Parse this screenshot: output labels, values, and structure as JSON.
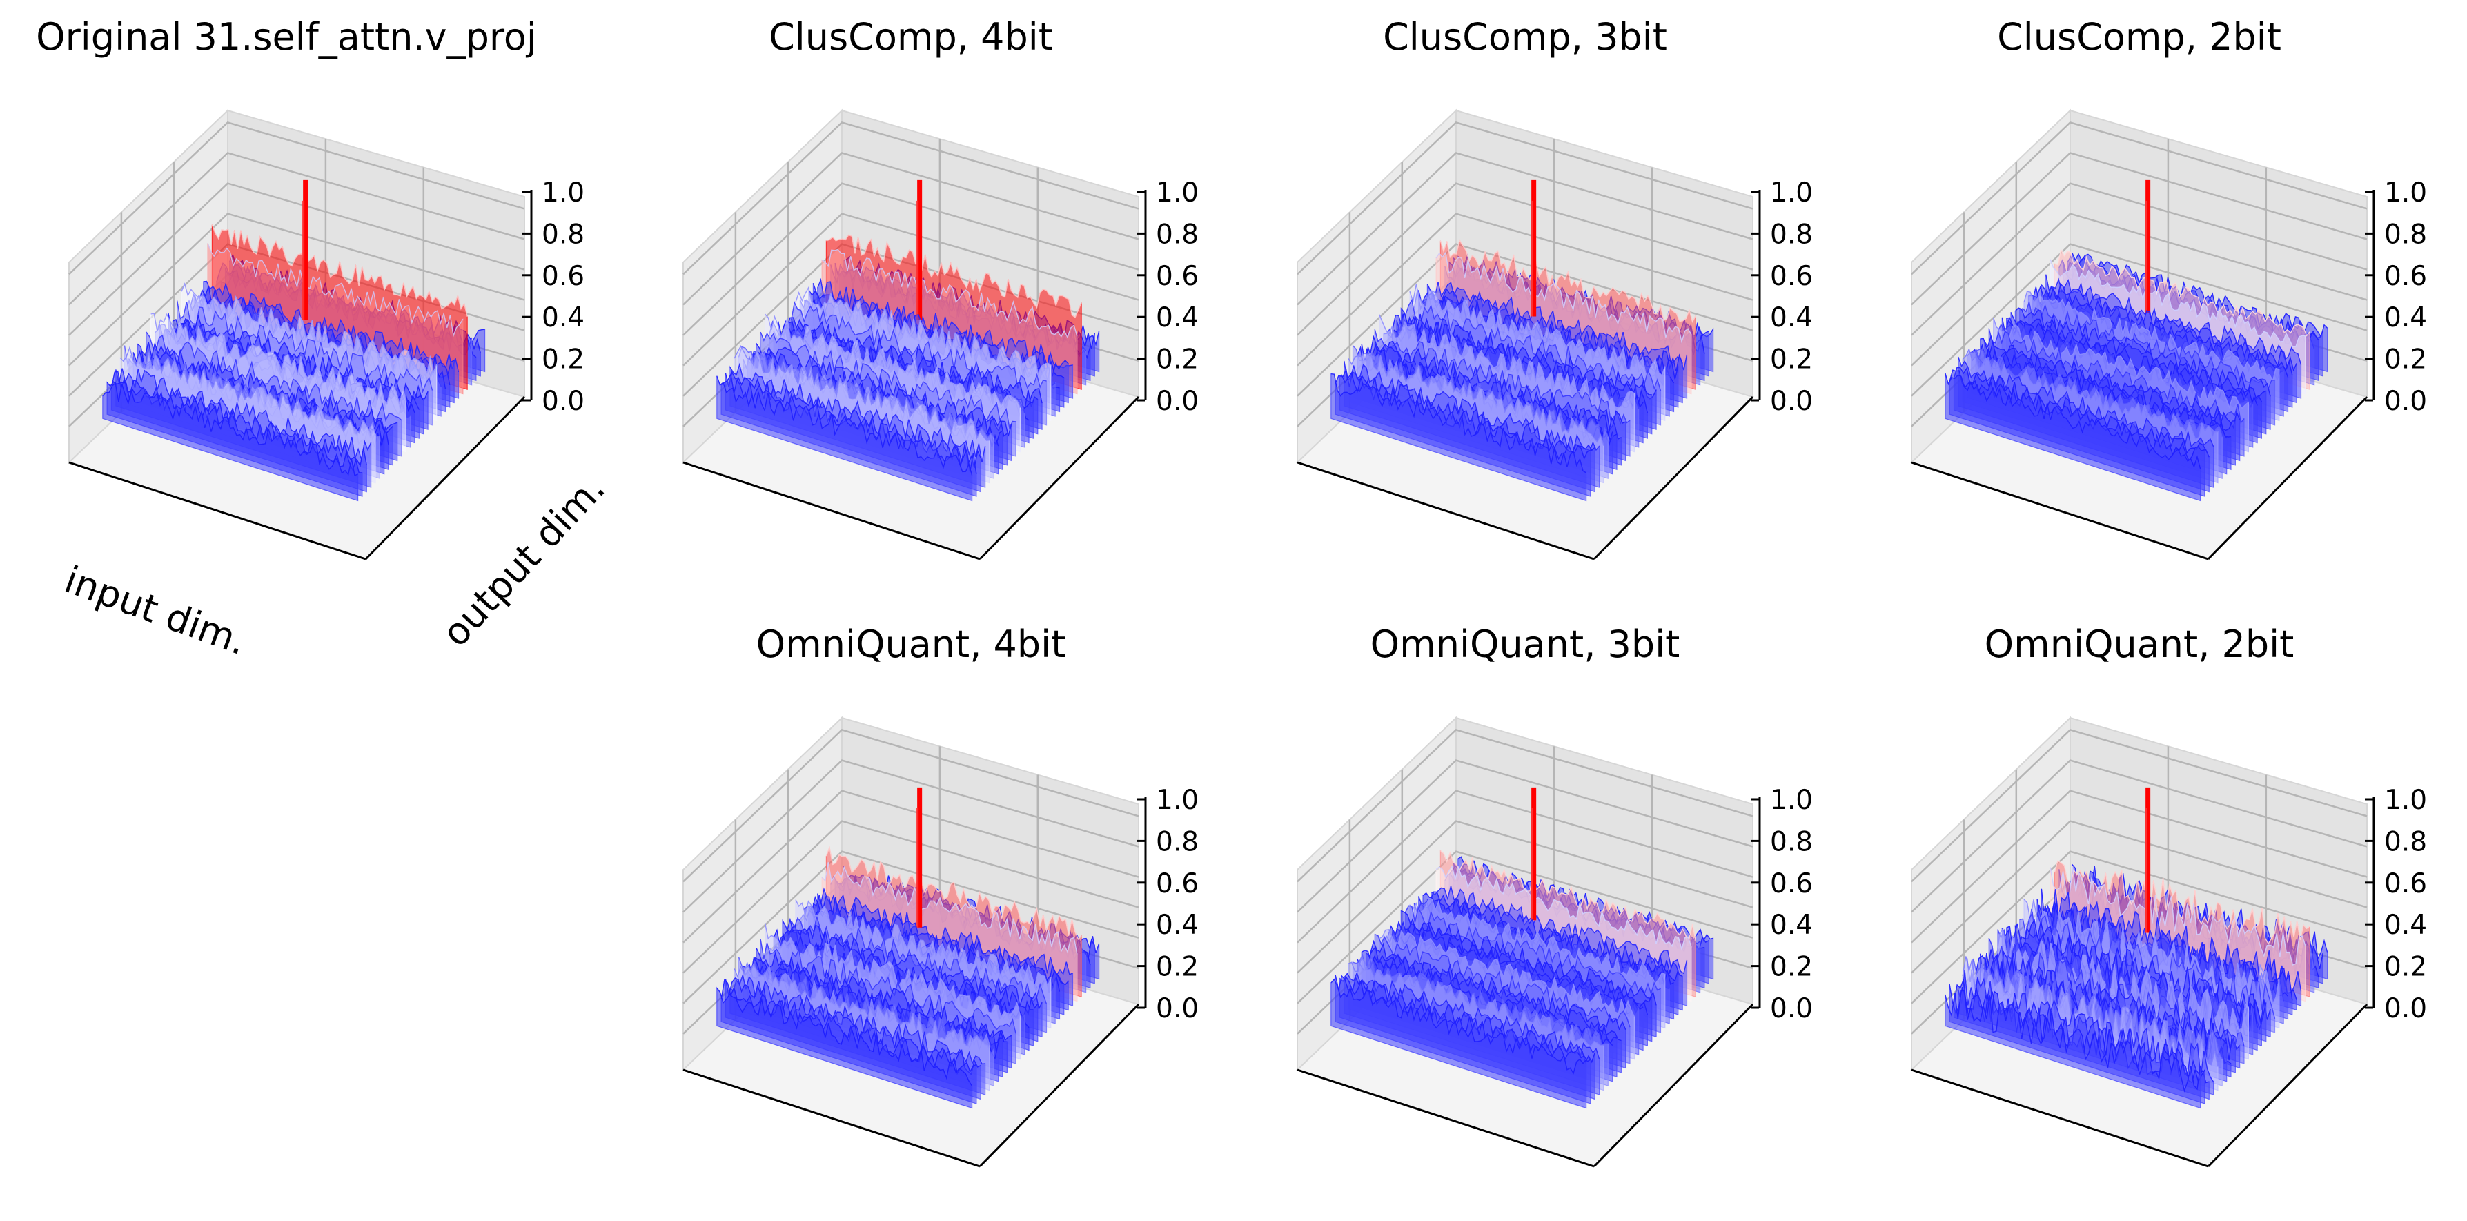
{
  "chart_data": {
    "type": "surface3d",
    "colormap": {
      "low": "#0000ff",
      "mid": "#ffffff",
      "high": "#ff0000"
    },
    "zlim": [
      0.0,
      1.0
    ],
    "zticks": [
      "0.0",
      "0.2",
      "0.4",
      "0.6",
      "0.8",
      "1.0"
    ],
    "xlabel": "input dim.",
    "ylabel": "output dim.",
    "panels": [
      {
        "title": "Original 31.self_attn.v_proj",
        "baseline": 0.18,
        "noise": 0.06,
        "ridge": 0.32,
        "spike": 1.0,
        "row": 0,
        "col": 0
      },
      {
        "title": "ClusComp, 4bit",
        "baseline": 0.18,
        "noise": 0.06,
        "ridge": 0.3,
        "spike": 1.0,
        "row": 0,
        "col": 1
      },
      {
        "title": "ClusComp, 3bit",
        "baseline": 0.2,
        "noise": 0.06,
        "ridge": 0.22,
        "spike": 1.0,
        "row": 0,
        "col": 2
      },
      {
        "title": "ClusComp, 2bit",
        "baseline": 0.22,
        "noise": 0.05,
        "ridge": 0.12,
        "spike": 1.0,
        "row": 0,
        "col": 3
      },
      {
        "title": "OmniQuant, 4bit",
        "baseline": 0.18,
        "noise": 0.06,
        "ridge": 0.22,
        "spike": 1.0,
        "row": 1,
        "col": 1
      },
      {
        "title": "OmniQuant, 3bit",
        "baseline": 0.22,
        "noise": 0.05,
        "ridge": 0.16,
        "spike": 1.0,
        "row": 1,
        "col": 2
      },
      {
        "title": "OmniQuant, 2bit",
        "baseline": 0.15,
        "noise": 0.1,
        "ridge": 0.2,
        "spike": 1.0,
        "row": 1,
        "col": 3
      }
    ]
  }
}
